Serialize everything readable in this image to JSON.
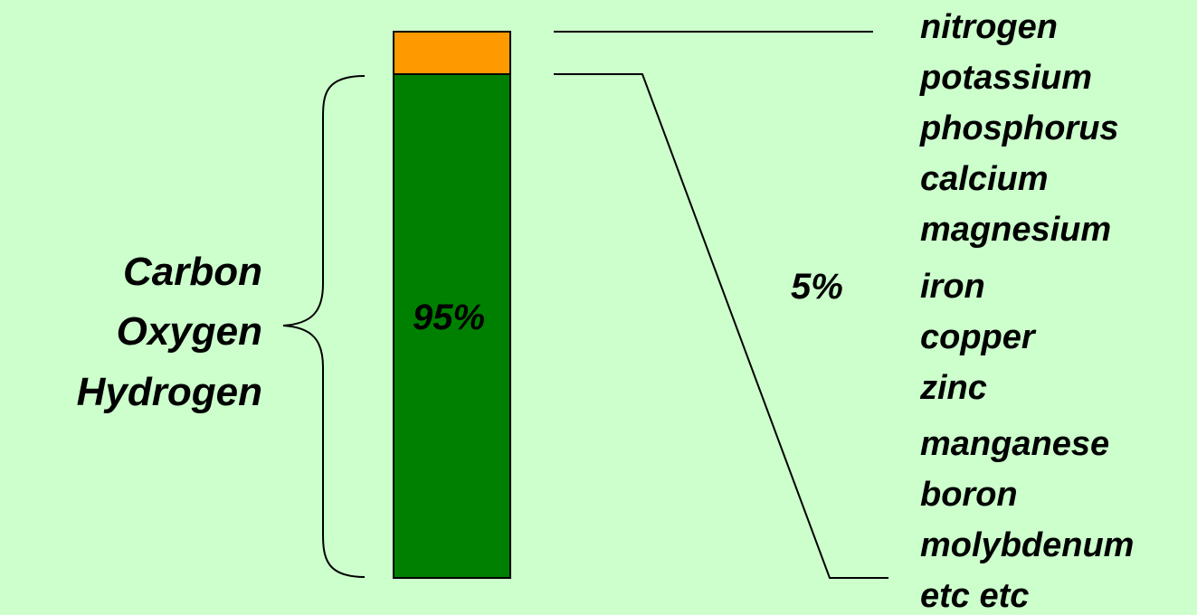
{
  "colors": {
    "background": "#ccffcc",
    "major_segment": "#008000",
    "minor_segment": "#ff9900",
    "stroke": "#000000"
  },
  "major_group": {
    "percent_label": "95%",
    "elements": [
      "Carbon",
      "Oxygen",
      "Hydrogen"
    ]
  },
  "minor_group": {
    "percent_label": "5%",
    "elements": [
      "nitrogen",
      "potassium",
      "phosphorus",
      "calcium",
      "magnesium",
      "iron",
      "copper",
      "zinc",
      "manganese",
      "boron",
      "molybdenum",
      "etc etc"
    ]
  }
}
